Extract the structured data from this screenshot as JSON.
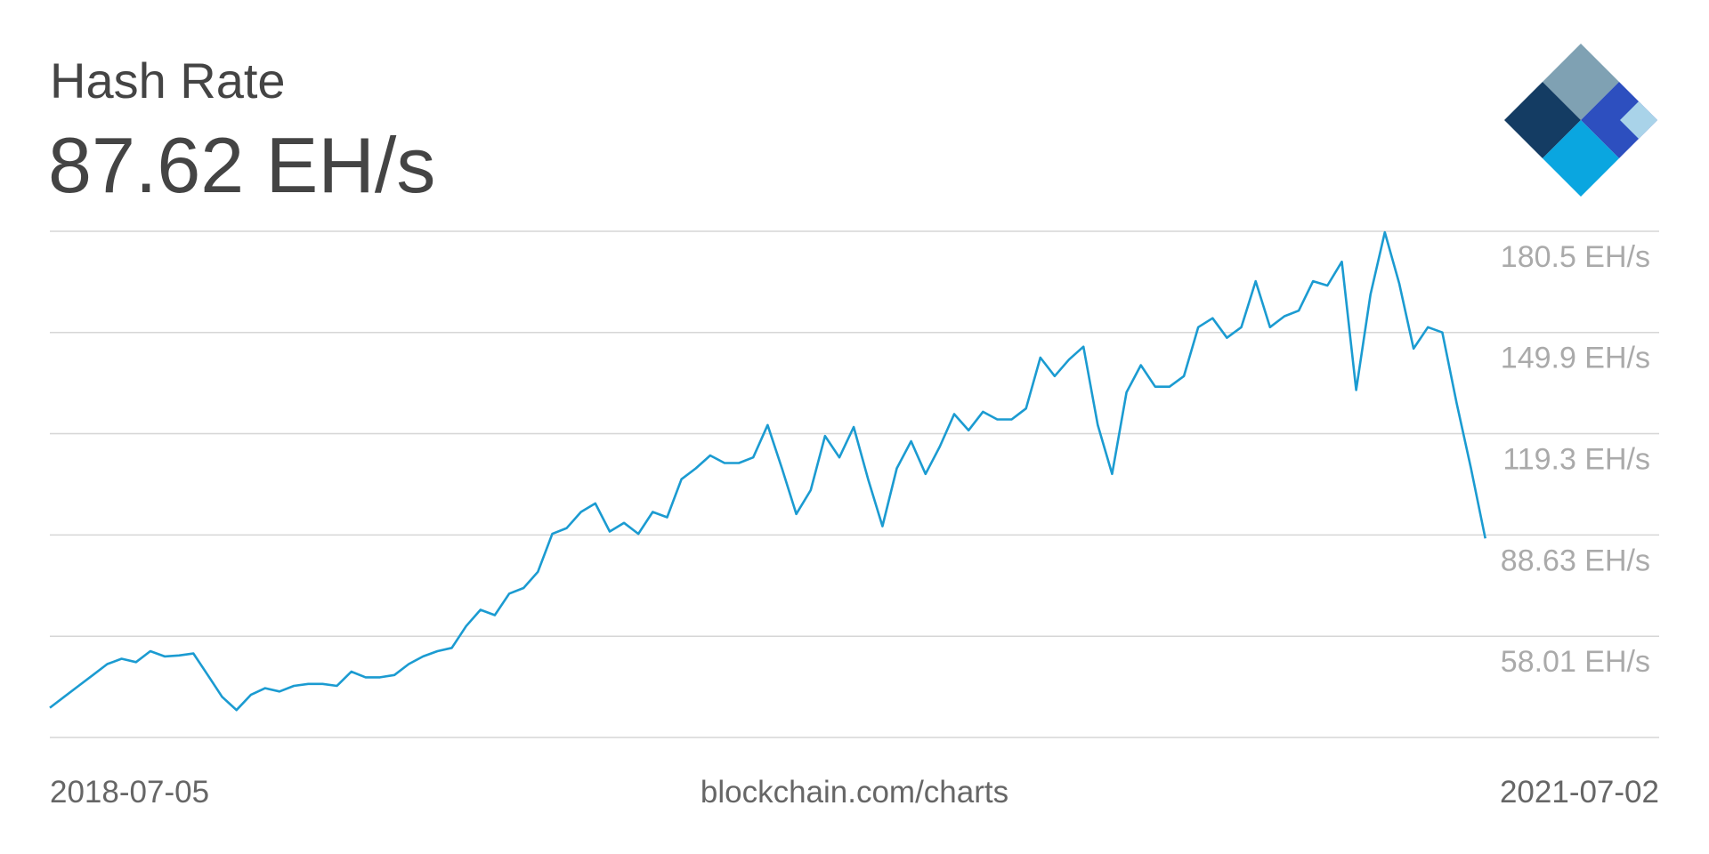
{
  "chart_data": {
    "type": "line",
    "title": "Hash Rate",
    "subtitle": "87.62 EH/s",
    "source": "blockchain.com/charts",
    "color": "#1b9bd1",
    "grid": true,
    "xticks": [
      "2018-07-05",
      "2021-07-02"
    ],
    "ylim": [
      27.4,
      180.5
    ],
    "yticks": [
      {
        "value": 180.5,
        "label": "180.5 EH/s"
      },
      {
        "value": 149.9,
        "label": "149.9 EH/s"
      },
      {
        "value": 119.3,
        "label": "119.3 EH/s"
      },
      {
        "value": 88.63,
        "label": "88.63 EH/s"
      },
      {
        "value": 58.01,
        "label": "58.01 EH/s"
      }
    ],
    "values": [
      36.4,
      39.7,
      43.0,
      46.3,
      49.6,
      51.2,
      50.2,
      53.5,
      51.9,
      52.2,
      52.8,
      46.3,
      39.7,
      35.7,
      40.3,
      42.3,
      41.3,
      43.0,
      43.6,
      43.6,
      43.0,
      47.3,
      45.6,
      45.6,
      46.3,
      49.6,
      51.9,
      53.5,
      54.5,
      61.1,
      66.0,
      64.4,
      70.9,
      72.6,
      77.5,
      89.0,
      90.7,
      95.6,
      98.2,
      89.7,
      92.3,
      89.0,
      95.6,
      94.0,
      105.5,
      108.8,
      112.7,
      110.4,
      110.4,
      112.1,
      121.9,
      108.8,
      95.0,
      102.2,
      118.6,
      112.1,
      121.3,
      105.5,
      91.3,
      108.8,
      117.0,
      107.1,
      115.4,
      125.2,
      120.3,
      125.9,
      123.6,
      123.6,
      126.9,
      142.3,
      136.7,
      141.7,
      145.6,
      121.9,
      107.1,
      131.8,
      140.0,
      133.5,
      133.5,
      136.7,
      151.5,
      154.2,
      148.3,
      151.5,
      165.4,
      151.5,
      154.8,
      156.5,
      165.4,
      164.1,
      171.3,
      132.5,
      161.4,
      180.2,
      164.7,
      145.0,
      151.5,
      149.9,
      128.5,
      108.8,
      87.62
    ]
  }
}
